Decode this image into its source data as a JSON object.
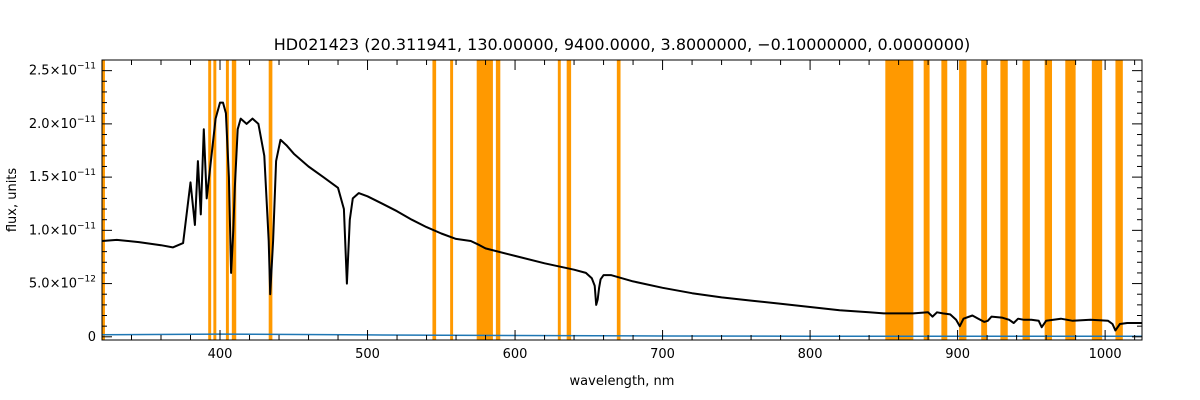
{
  "chart_data": {
    "type": "line",
    "title": "HD021423   (20.311941, 130.00000, 9400.0000, 3.8000000, −0.10000000, 0.0000000)",
    "xlabel": "wavelength, nm",
    "ylabel": "flux, units",
    "xlim": [
      320,
      1025
    ],
    "ylim": [
      -3e-13,
      2.6e-11
    ],
    "x_ticks": [
      400,
      500,
      600,
      700,
      800,
      900,
      1000
    ],
    "x_tick_labels": [
      "400",
      "500",
      "600",
      "700",
      "800",
      "900",
      "1000"
    ],
    "y_ticks": [
      0,
      5e-12,
      1e-11,
      1.5e-11,
      2e-11,
      2.5e-11
    ],
    "y_tick_labels": [
      {
        "mantissa": "0",
        "exp": ""
      },
      {
        "mantissa": "5.0×10",
        "exp": "−12"
      },
      {
        "mantissa": "1.0×10",
        "exp": "−11"
      },
      {
        "mantissa": "1.5×10",
        "exp": "−11"
      },
      {
        "mantissa": "2.0×10",
        "exp": "−11"
      },
      {
        "mantissa": "2.5×10",
        "exp": "−11"
      }
    ],
    "colors": {
      "spectrum": "#000000",
      "error": "#1f77b4",
      "mask": "#ff9900",
      "frame": "#000000"
    },
    "masked_regions": [
      [
        320,
        322
      ],
      [
        392,
        394
      ],
      [
        395.5,
        397.5
      ],
      [
        404,
        406
      ],
      [
        408,
        411
      ],
      [
        433,
        435.5
      ],
      [
        544,
        546.5
      ],
      [
        556,
        558
      ],
      [
        574,
        585
      ],
      [
        587,
        590
      ],
      [
        629,
        631
      ],
      [
        635,
        638
      ],
      [
        669,
        671.5
      ],
      [
        851,
        870
      ],
      [
        877,
        881
      ],
      [
        889,
        893
      ],
      [
        901,
        906
      ],
      [
        916,
        920
      ],
      [
        929,
        934
      ],
      [
        944,
        949
      ],
      [
        959,
        964
      ],
      [
        973,
        980
      ],
      [
        991,
        998
      ],
      [
        1007,
        1012
      ]
    ],
    "series": [
      {
        "x": [
          320,
          330,
          345,
          360,
          368,
          375,
          380,
          383,
          385,
          387,
          389,
          391,
          393,
          397,
          400,
          402,
          404,
          406,
          407.5,
          409,
          410,
          412,
          414,
          418,
          422,
          426,
          430,
          433,
          434,
          436,
          438,
          441,
          445,
          450,
          460,
          470,
          480,
          484,
          486,
          488,
          490,
          494,
          500,
          510,
          520,
          530,
          540,
          550,
          560,
          570,
          576,
          580,
          600,
          620,
          640,
          648,
          652,
          654,
          655,
          656,
          657,
          658,
          660,
          665,
          680,
          700,
          720,
          740,
          760,
          780,
          800,
          820,
          840,
          850,
          870,
          880,
          883,
          886,
          890,
          895,
          899,
          901.5,
          904,
          910,
          914,
          918,
          920.5,
          923,
          930,
          935,
          938,
          941,
          945,
          950,
          955,
          957,
          960,
          965,
          970,
          978,
          990,
          1002,
          1005,
          1007,
          1010,
          1015,
          1025
        ],
        "y": [
          9e-12,
          9.1e-12,
          8.9e-12,
          8.6e-12,
          8.4e-12,
          8.8e-12,
          1.45e-11,
          1.05e-11,
          1.65e-11,
          1.15e-11,
          1.95e-11,
          1.3e-11,
          1.55e-11,
          2.05e-11,
          2.2e-11,
          2.2e-11,
          2.1e-11,
          1.5e-11,
          6e-12,
          1e-11,
          1.4e-11,
          1.95e-11,
          2.05e-11,
          2e-11,
          2.05e-11,
          2e-11,
          1.7e-11,
          9e-12,
          4e-12,
          9e-12,
          1.65e-11,
          1.85e-11,
          1.8e-11,
          1.72e-11,
          1.6e-11,
          1.5e-11,
          1.4e-11,
          1.2e-11,
          5e-12,
          1.1e-11,
          1.3e-11,
          1.35e-11,
          1.32e-11,
          1.25e-11,
          1.18e-11,
          1.1e-11,
          1.03e-11,
          9.7e-12,
          9.2e-12,
          9e-12,
          8.6e-12,
          8.3e-12,
          7.6e-12,
          6.9e-12,
          6.3e-12,
          6e-12,
          5.5e-12,
          4.8e-12,
          3e-12,
          3.5e-12,
          4.6e-12,
          5.4e-12,
          5.8e-12,
          5.8e-12,
          5.2e-12,
          4.6e-12,
          4.1e-12,
          3.7e-12,
          3.4e-12,
          3.1e-12,
          2.8e-12,
          2.5e-12,
          2.3e-12,
          2.2e-12,
          2.2e-12,
          2.3e-12,
          1.9e-12,
          2.3e-12,
          2.2e-12,
          2.1e-12,
          1.6e-12,
          1e-12,
          1.7e-12,
          2e-12,
          1.7e-12,
          1.4e-12,
          1.5e-12,
          1.9e-12,
          1.8e-12,
          1.6e-12,
          1.3e-12,
          1.7e-12,
          1.6e-12,
          1.6e-12,
          1.5e-12,
          9e-13,
          1.5e-12,
          1.6e-12,
          1.7e-12,
          1.5e-12,
          1.6e-12,
          1.5e-12,
          1.2e-12,
          6e-13,
          1.2e-12,
          1.3e-12,
          1.3e-12
        ]
      },
      {
        "x": [
          320,
          400,
          500,
          600,
          700,
          800,
          900,
          1000,
          1025
        ],
        "y": [
          2e-13,
          2.5e-13,
          1.8e-13,
          1.2e-13,
          8e-14,
          6e-14,
          5e-14,
          5e-14,
          5e-14
        ]
      }
    ]
  }
}
